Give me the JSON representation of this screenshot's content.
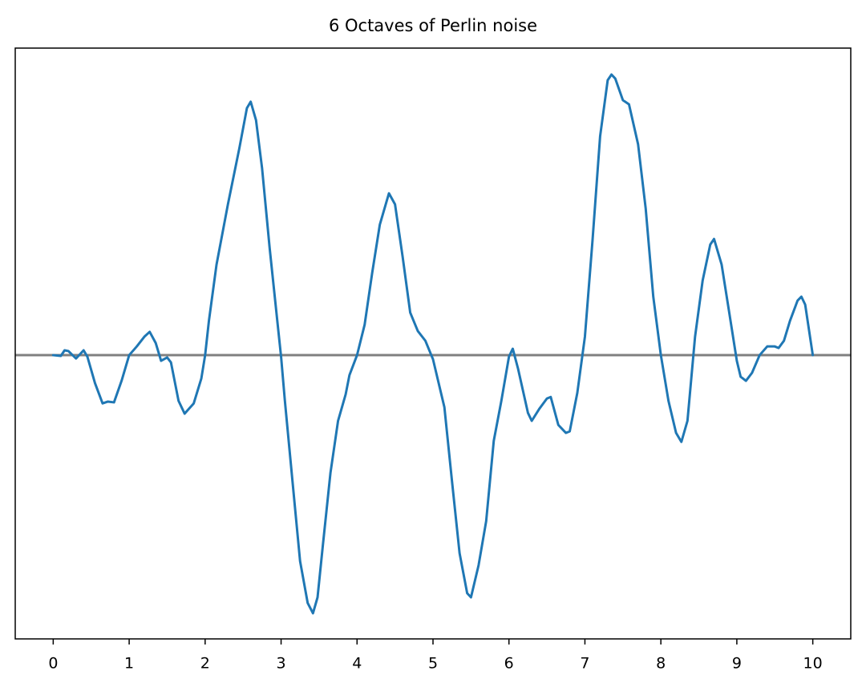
{
  "chart_data": {
    "type": "line",
    "title": "6 Octaves of Perlin noise",
    "x": [
      0,
      0.1,
      0.15,
      0.2,
      0.3,
      0.4,
      0.45,
      0.55,
      0.65,
      0.72,
      0.8,
      0.9,
      1.0,
      1.1,
      1.2,
      1.27,
      1.35,
      1.42,
      1.5,
      1.55,
      1.65,
      1.73,
      1.85,
      1.95,
      2.0,
      2.05,
      2.15,
      2.3,
      2.45,
      2.55,
      2.6,
      2.67,
      2.75,
      2.85,
      2.95,
      3.0,
      3.05,
      3.15,
      3.25,
      3.35,
      3.42,
      3.48,
      3.55,
      3.65,
      3.75,
      3.85,
      3.9,
      4.0,
      4.1,
      4.2,
      4.3,
      4.42,
      4.5,
      4.6,
      4.7,
      4.8,
      4.9,
      5.0,
      5.15,
      5.25,
      5.35,
      5.45,
      5.5,
      5.6,
      5.7,
      5.8,
      5.9,
      6.0,
      6.05,
      6.12,
      6.25,
      6.3,
      6.4,
      6.5,
      6.55,
      6.65,
      6.75,
      6.8,
      6.9,
      7.0,
      7.1,
      7.2,
      7.3,
      7.35,
      7.4,
      7.5,
      7.58,
      7.7,
      7.8,
      7.9,
      8.0,
      8.1,
      8.2,
      8.27,
      8.35,
      8.45,
      8.55,
      8.65,
      8.7,
      8.8,
      8.9,
      9.0,
      9.05,
      9.12,
      9.2,
      9.3,
      9.4,
      9.5,
      9.55,
      9.62,
      9.7,
      9.8,
      9.85,
      9.9,
      10.0
    ],
    "values": [
      0,
      -0.003,
      0.019,
      0.016,
      -0.013,
      0.019,
      -0.006,
      -0.109,
      -0.188,
      -0.181,
      -0.184,
      -0.1,
      0,
      0.034,
      0.072,
      0.091,
      0.047,
      -0.022,
      -0.009,
      -0.028,
      -0.178,
      -0.228,
      -0.188,
      -0.091,
      0,
      0.134,
      0.353,
      0.588,
      0.806,
      0.963,
      0.988,
      0.916,
      0.728,
      0.416,
      0.134,
      -0.006,
      -0.178,
      -0.491,
      -0.803,
      -0.966,
      -1.006,
      -0.944,
      -0.741,
      -0.459,
      -0.256,
      -0.153,
      -0.078,
      0,
      0.119,
      0.322,
      0.509,
      0.631,
      0.588,
      0.384,
      0.166,
      0.094,
      0.056,
      -0.016,
      -0.203,
      -0.491,
      -0.772,
      -0.928,
      -0.944,
      -0.819,
      -0.647,
      -0.334,
      -0.178,
      -0.006,
      0.025,
      -0.053,
      -0.225,
      -0.256,
      -0.209,
      -0.169,
      -0.163,
      -0.272,
      -0.303,
      -0.297,
      -0.147,
      0.072,
      0.447,
      0.853,
      1.072,
      1.094,
      1.078,
      0.994,
      0.978,
      0.822,
      0.572,
      0.228,
      0,
      -0.178,
      -0.303,
      -0.338,
      -0.256,
      0.072,
      0.291,
      0.431,
      0.453,
      0.353,
      0.166,
      -0.022,
      -0.084,
      -0.1,
      -0.069,
      0,
      0.034,
      0.034,
      0.028,
      0.056,
      0.134,
      0.213,
      0.228,
      0.197,
      0
    ],
    "color": "#1f77b4",
    "hline": 0,
    "hline_color": "#808080",
    "xlim": [
      -0.5,
      10.5
    ],
    "xticks": [
      0,
      1,
      2,
      3,
      4,
      5,
      6,
      7,
      8,
      9,
      10
    ],
    "ylim": [
      -1.106,
      1.197
    ]
  }
}
